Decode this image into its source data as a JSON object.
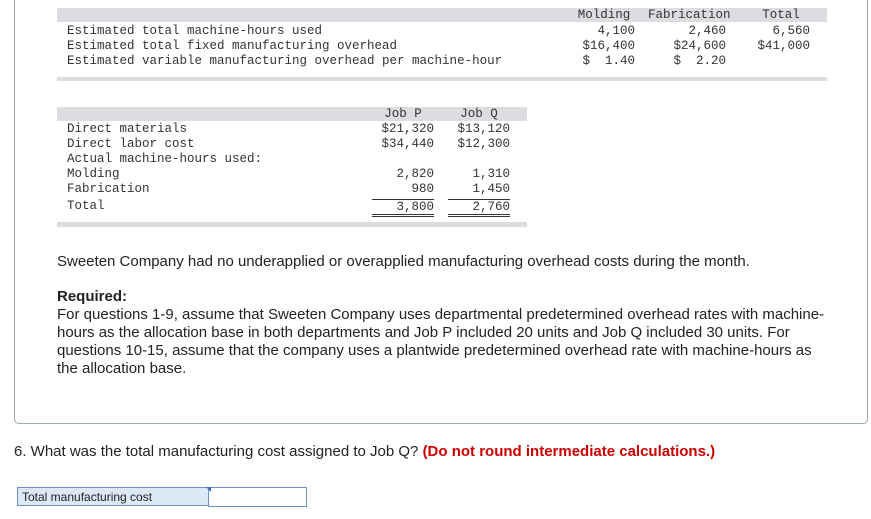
{
  "table1": {
    "headers": [
      "Molding",
      "Fabrication",
      "Total"
    ],
    "rows": [
      {
        "label": "Estimated total machine-hours used",
        "values": [
          "4,100",
          "2,460",
          "6,560"
        ]
      },
      {
        "label": "Estimated total fixed manufacturing overhead",
        "values": [
          "$16,400",
          "$24,600",
          "$41,000"
        ]
      },
      {
        "label": "Estimated variable manufacturing overhead per machine-hour",
        "values": [
          "$  1.40",
          "$  2.20"
        ]
      }
    ]
  },
  "table2": {
    "headers": [
      "Job P",
      "Job Q"
    ],
    "rows": [
      {
        "label": "Direct materials",
        "values": [
          "$21,320",
          "$13,120"
        ]
      },
      {
        "label": "Direct labor cost",
        "values": [
          "$34,440",
          "$12,300"
        ]
      },
      {
        "label": "Actual machine-hours used:",
        "values": []
      },
      {
        "label": "Molding",
        "values": [
          "2,820",
          "1,310"
        ]
      },
      {
        "label": "Fabrication",
        "values": [
          "980",
          "1,450"
        ]
      },
      {
        "label": "Total",
        "values": [
          "3,800",
          "2,760"
        ]
      }
    ]
  },
  "statement": "Sweeten Company had no underapplied or overapplied manufacturing overhead costs during the month.",
  "required": {
    "title": "Required:",
    "text": "For questions 1-9, assume that Sweeten Company uses departmental predetermined overhead rates with machine-hours as the allocation base in both departments and Job P included 20 units and Job Q included 30 units. For questions 10-15, assume that the company uses a plantwide predetermined overhead rate with machine-hours as the allocation base."
  },
  "question": {
    "text": "6. What was the total manufacturing cost assigned to Job Q?",
    "note": "(Do not round intermediate calculations.)"
  },
  "answer": {
    "label": "Total manufacturing cost"
  }
}
